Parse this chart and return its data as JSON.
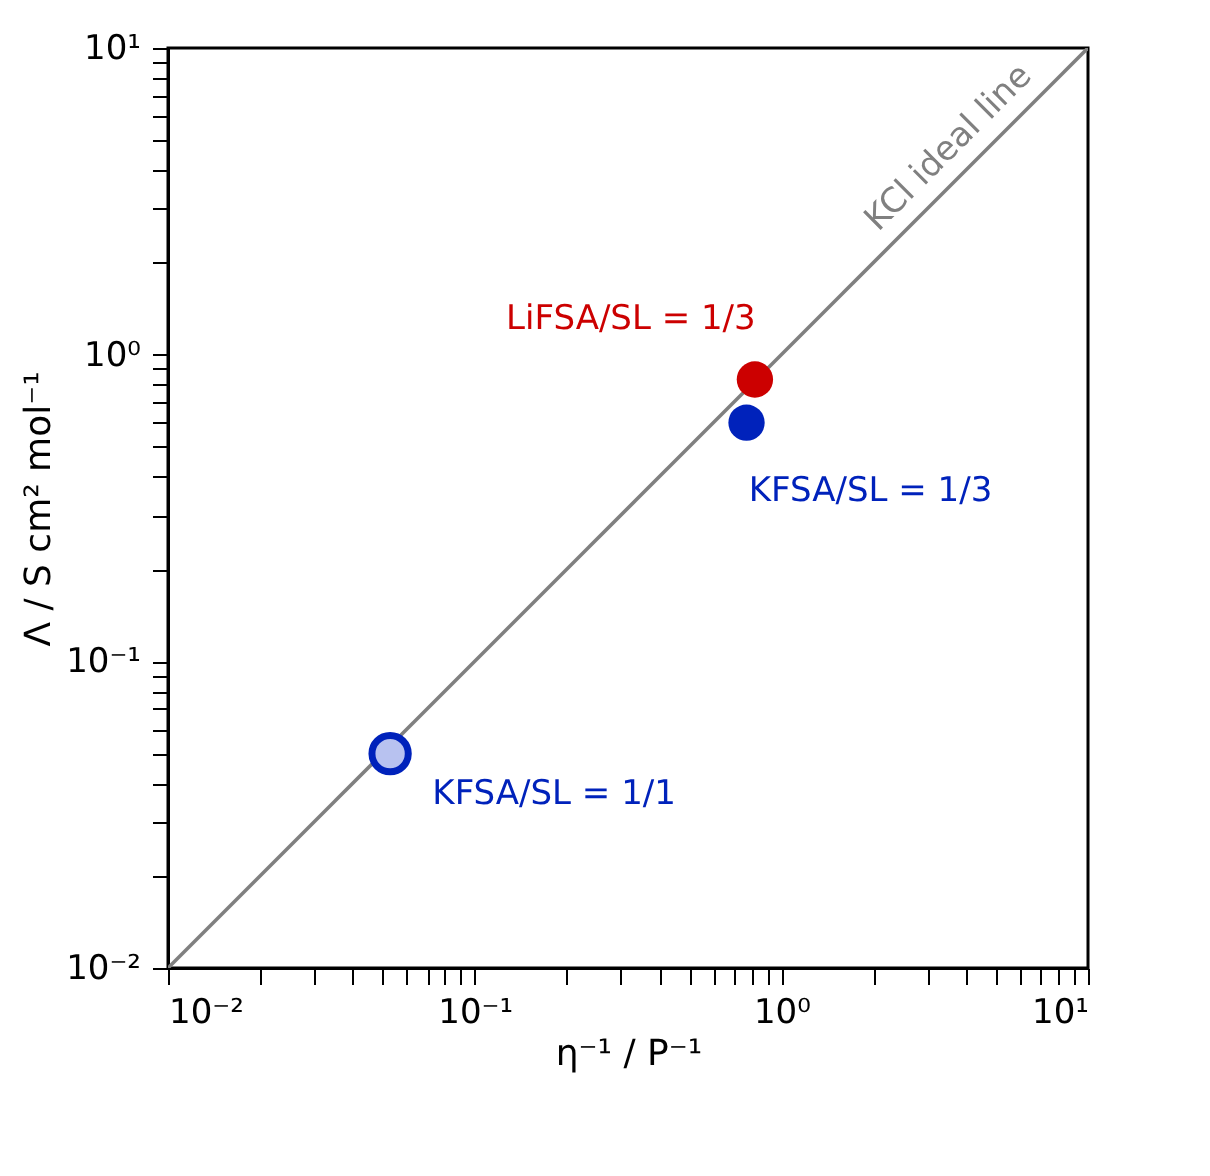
{
  "chart_data": {
    "type": "scatter",
    "xlabel": "η⁻¹ / P⁻¹",
    "ylabel": "Λ / S cm² mol⁻¹",
    "log": "xy",
    "grid": false,
    "xlim": [
      0.01,
      10
    ],
    "ylim": [
      0.01,
      10
    ],
    "xticks": [
      {
        "value": 0.01,
        "label": "10⁻²"
      },
      {
        "value": 0.1,
        "label": "10⁻¹"
      },
      {
        "value": 1,
        "label": "10⁰"
      },
      {
        "value": 10,
        "label": "10¹"
      }
    ],
    "yticks": [
      {
        "value": 0.01,
        "label": "10⁻²"
      },
      {
        "value": 0.1,
        "label": "10⁻¹"
      },
      {
        "value": 1,
        "label": "10⁰"
      },
      {
        "value": 10,
        "label": "10¹"
      }
    ],
    "series": [
      {
        "name": "KCl ideal line",
        "type": "line",
        "color": "#808080",
        "x": [
          0.01,
          10
        ],
        "values": [
          0.01,
          10
        ]
      },
      {
        "name": "LiFSA/SL = 1/3",
        "marker": "circle",
        "color": "#cc0000",
        "x": [
          0.82
        ],
        "values": [
          0.83
        ]
      },
      {
        "name": "KFSA/SL = 1/3",
        "marker": "circle",
        "color": "#0022bb",
        "x": [
          0.77
        ],
        "values": [
          0.6
        ]
      },
      {
        "name": "KFSA/SL = 1/1",
        "marker": "circle",
        "color": "#0022bb",
        "x": [
          0.053
        ],
        "values": [
          0.05
        ]
      }
    ]
  }
}
